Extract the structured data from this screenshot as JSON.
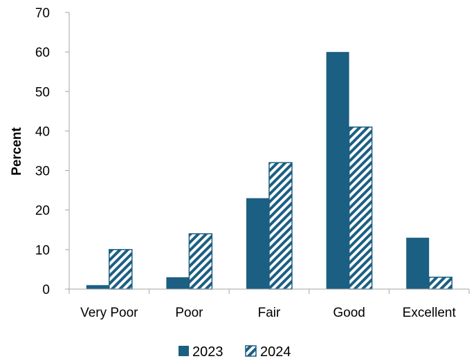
{
  "chart_data": {
    "type": "bar",
    "title": "",
    "xlabel": "",
    "ylabel": "Percent",
    "ylim": [
      0,
      70
    ],
    "yticks": [
      0,
      10,
      20,
      30,
      40,
      50,
      60,
      70
    ],
    "categories": [
      "Very Poor",
      "Poor",
      "Fair",
      "Good",
      "Excellent"
    ],
    "series": [
      {
        "name": "2023",
        "values": [
          1,
          3,
          23,
          60,
          13
        ],
        "style": "solid",
        "color": "#1b5f82"
      },
      {
        "name": "2024",
        "values": [
          10,
          14,
          32,
          41,
          3
        ],
        "style": "hatched",
        "color": "#1b5f82"
      }
    ],
    "grid": false,
    "legend": "bottom"
  }
}
